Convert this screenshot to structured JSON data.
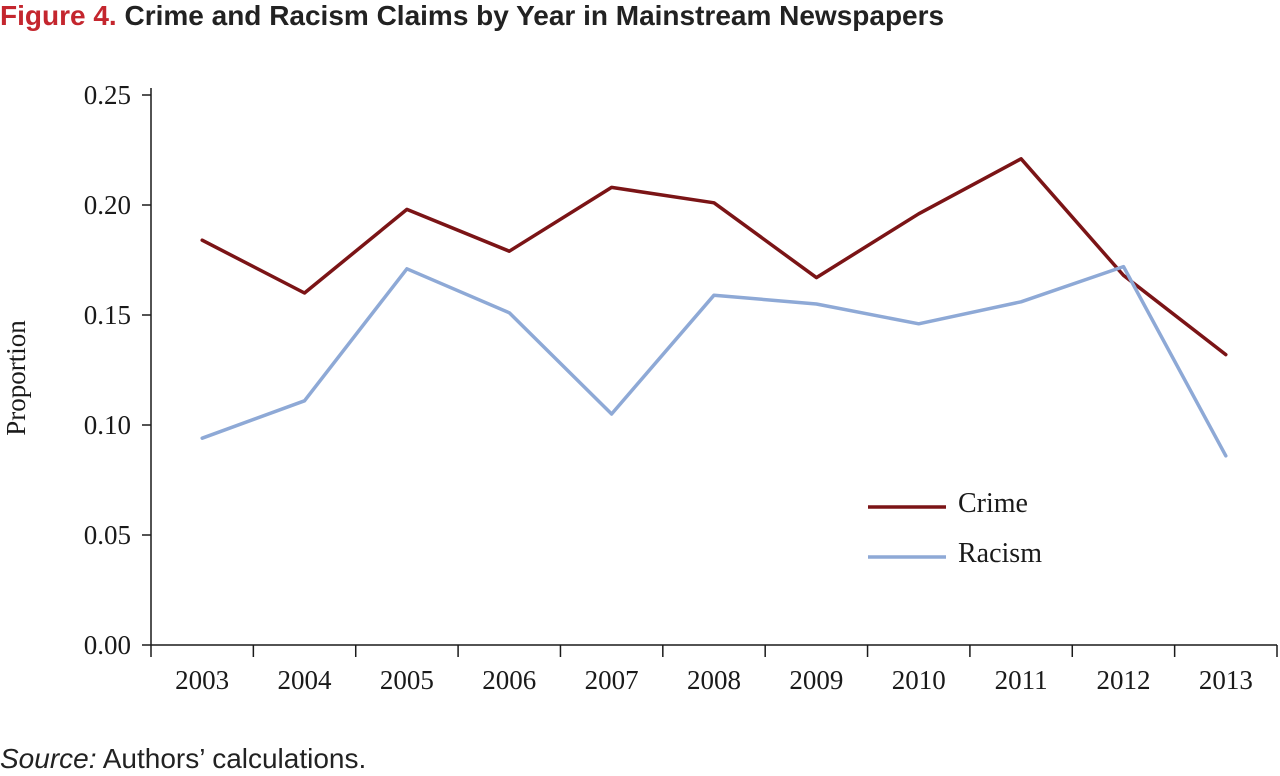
{
  "figure": {
    "label": "Figure 4.",
    "title": "Crime and Racism Claims by Year in Mainstream Newspapers",
    "source_label": "Source:",
    "source_text": "Authors’ calculations."
  },
  "chart_data": {
    "type": "line",
    "ylabel": "Proportion",
    "xlabel": "",
    "ylim": [
      0,
      0.25
    ],
    "yticks": [
      "0.00",
      "0.05",
      "0.10",
      "0.15",
      "0.20",
      "0.25"
    ],
    "categories": [
      "2003",
      "2004",
      "2005",
      "2006",
      "2007",
      "2008",
      "2009",
      "2010",
      "2011",
      "2012",
      "2013"
    ],
    "legend_position": "center-right",
    "grid": false,
    "series": [
      {
        "name": "Crime",
        "color": "#7b1416",
        "values": [
          0.184,
          0.16,
          0.198,
          0.179,
          0.208,
          0.201,
          0.167,
          0.196,
          0.221,
          0.168,
          0.132
        ]
      },
      {
        "name": "Racism",
        "color": "#8ea9d6",
        "values": [
          0.094,
          0.111,
          0.171,
          0.151,
          0.105,
          0.159,
          0.155,
          0.146,
          0.156,
          0.172,
          0.086
        ]
      }
    ]
  }
}
